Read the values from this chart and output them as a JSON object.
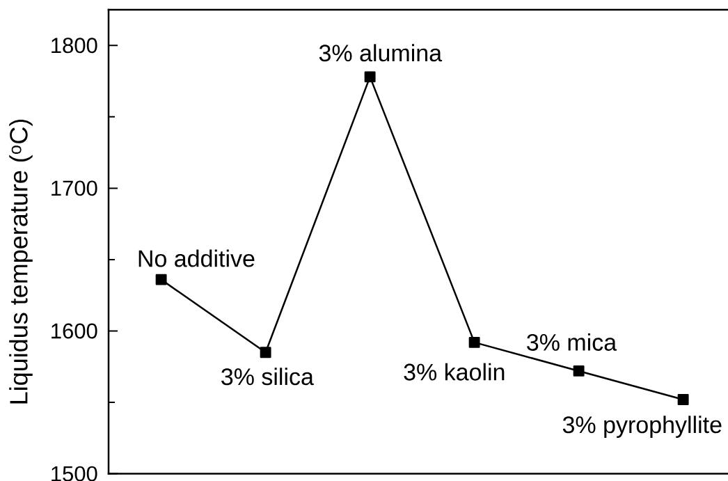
{
  "chart_data": {
    "type": "line",
    "ylabel": "Liquidus temperature ($^{o}$C)",
    "categories": [
      null,
      null,
      null,
      null,
      null,
      null
    ],
    "values": [
      1636,
      1585,
      1778,
      1592,
      1572,
      1552
    ],
    "color": "#000000",
    "marker": "square",
    "line_style": "solid",
    "ylim": [
      1500,
      1825
    ],
    "yticks": [
      1500,
      {
        "value": 1550,
        "label": null
      },
      1600,
      {
        "value": 1650,
        "label": null
      },
      1700,
      {
        "value": 1750,
        "label": null
      },
      1800
    ],
    "tick_labels": "y",
    "annotations": [
      "No additive",
      "3% silica",
      "3% alumina",
      "3% kaolin",
      "3% mica",
      "3% pyrophyllite"
    ]
  }
}
